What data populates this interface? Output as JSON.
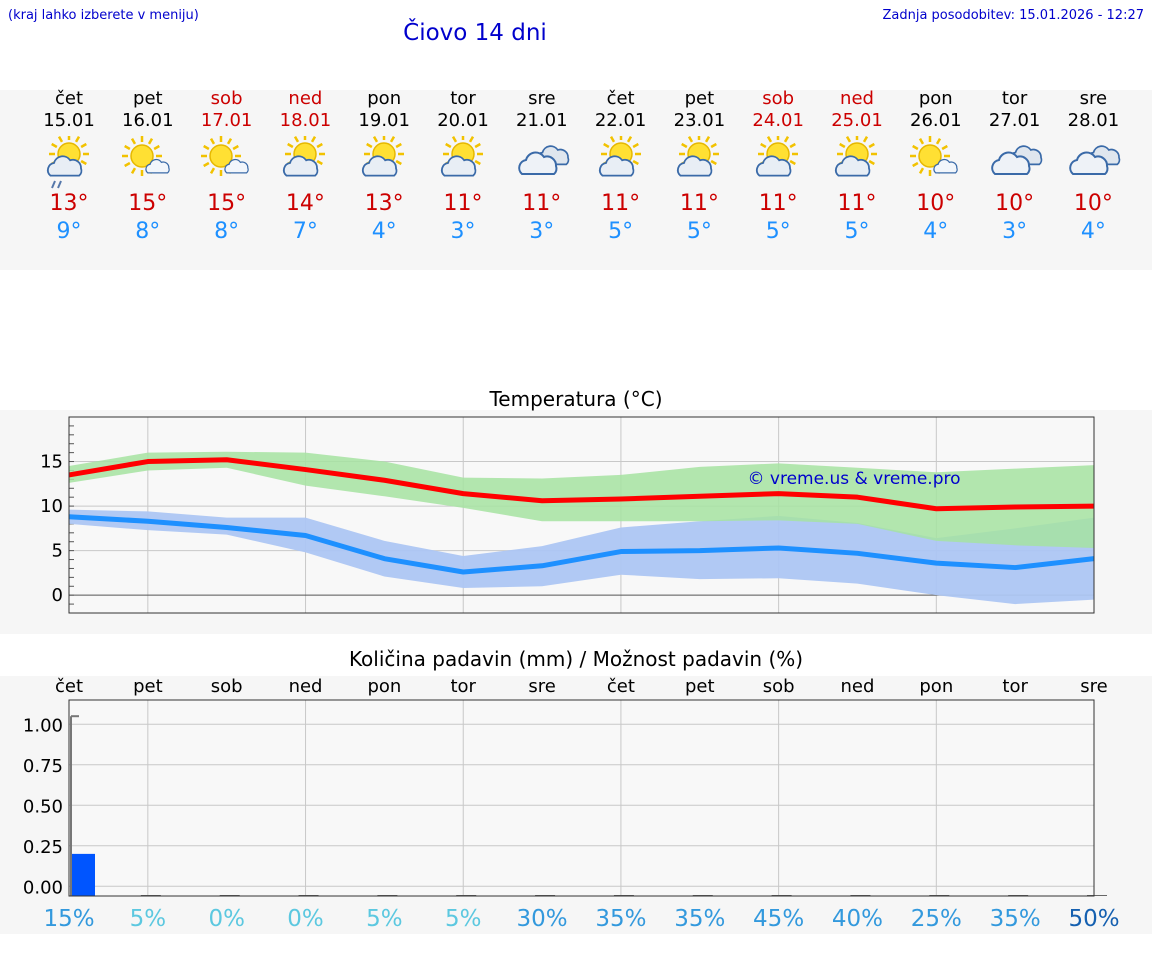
{
  "header": {
    "hint": "(kraj lahko izberete v meniju)",
    "title": "Čiovo 14 dni",
    "updated": "Zadnja posodobitev: 15.01.2026 - 12:27"
  },
  "forecast": [
    {
      "day": "čet",
      "date": "15.01",
      "weekend": false,
      "icon": "partly-cloudy-drizzle-icon",
      "tmax": "13°",
      "tmin": "9°"
    },
    {
      "day": "pet",
      "date": "16.01",
      "weekend": false,
      "icon": "sun-small-cloud-icon",
      "tmax": "15°",
      "tmin": "8°"
    },
    {
      "day": "sob",
      "date": "17.01",
      "weekend": true,
      "icon": "sun-small-cloud-icon",
      "tmax": "15°",
      "tmin": "8°"
    },
    {
      "day": "ned",
      "date": "18.01",
      "weekend": true,
      "icon": "partly-cloudy-icon",
      "tmax": "14°",
      "tmin": "7°"
    },
    {
      "day": "pon",
      "date": "19.01",
      "weekend": false,
      "icon": "partly-cloudy-icon",
      "tmax": "13°",
      "tmin": "4°"
    },
    {
      "day": "tor",
      "date": "20.01",
      "weekend": false,
      "icon": "partly-cloudy-icon",
      "tmax": "11°",
      "tmin": "3°"
    },
    {
      "day": "sre",
      "date": "21.01",
      "weekend": false,
      "icon": "cloudy-icon",
      "tmax": "11°",
      "tmin": "3°"
    },
    {
      "day": "čet",
      "date": "22.01",
      "weekend": false,
      "icon": "partly-cloudy-icon",
      "tmax": "11°",
      "tmin": "5°"
    },
    {
      "day": "pet",
      "date": "23.01",
      "weekend": false,
      "icon": "partly-cloudy-icon",
      "tmax": "11°",
      "tmin": "5°"
    },
    {
      "day": "sob",
      "date": "24.01",
      "weekend": true,
      "icon": "partly-cloudy-icon",
      "tmax": "11°",
      "tmin": "5°"
    },
    {
      "day": "ned",
      "date": "25.01",
      "weekend": true,
      "icon": "partly-cloudy-icon",
      "tmax": "11°",
      "tmin": "5°"
    },
    {
      "day": "pon",
      "date": "26.01",
      "weekend": false,
      "icon": "sun-small-cloud-icon",
      "tmax": "10°",
      "tmin": "4°"
    },
    {
      "day": "tor",
      "date": "27.01",
      "weekend": false,
      "icon": "cloudy-icon",
      "tmax": "10°",
      "tmin": "3°"
    },
    {
      "day": "sre",
      "date": "28.01",
      "weekend": false,
      "icon": "cloudy-icon",
      "tmax": "10°",
      "tmin": "4°"
    }
  ],
  "colors": {
    "max": "#ff0000",
    "min": "#1e90ff",
    "max_band": "#a6e3a1",
    "min_band": "#adc6f3",
    "overlap": "#7bc9a5",
    "bar": "#0055ff",
    "weekend": "#cc0000"
  },
  "chart_data": [
    {
      "type": "line",
      "title": "Temperatura (°C)",
      "watermark": "© vreme.us & vreme.pro",
      "x": [
        "15.01",
        "16.01",
        "17.01",
        "18.01",
        "19.01",
        "20.01",
        "21.01",
        "22.01",
        "23.01",
        "24.01",
        "25.01",
        "26.01",
        "27.01",
        "28.01"
      ],
      "ylim": [
        -2,
        20
      ],
      "yticks": [
        0,
        5,
        10,
        15
      ],
      "series": [
        {
          "name": "max",
          "values": [
            13.5,
            15.0,
            15.2,
            14.1,
            12.9,
            11.4,
            10.6,
            10.8,
            11.1,
            11.4,
            11.0,
            9.7,
            9.9,
            10.0
          ]
        },
        {
          "name": "min",
          "values": [
            8.8,
            8.3,
            7.6,
            6.7,
            4.1,
            2.6,
            3.3,
            4.9,
            5.0,
            5.3,
            4.7,
            3.6,
            3.1,
            4.1
          ]
        }
      ],
      "bands": [
        {
          "name": "max_range",
          "low": [
            12.6,
            14.0,
            14.3,
            12.3,
            11.1,
            9.8,
            8.3,
            8.3,
            8.3,
            8.4,
            8.0,
            6.1,
            5.6,
            5.3
          ],
          "high": [
            14.5,
            16.0,
            16.1,
            16.0,
            15.0,
            13.2,
            13.1,
            13.5,
            14.4,
            14.8,
            14.3,
            13.8,
            14.2,
            14.6
          ]
        },
        {
          "name": "min_range",
          "low": [
            8.0,
            7.3,
            6.8,
            4.8,
            2.1,
            0.8,
            1.0,
            2.3,
            1.8,
            1.9,
            1.3,
            0.0,
            -1.0,
            -0.5
          ],
          "high": [
            9.6,
            9.4,
            8.7,
            8.7,
            6.1,
            4.4,
            5.5,
            7.6,
            8.3,
            8.9,
            8.1,
            6.4,
            7.5,
            8.7
          ]
        }
      ]
    },
    {
      "type": "bar",
      "title": "Količina padavin (mm) / Možnost padavin (%)",
      "categories": [
        "čet",
        "pet",
        "sob",
        "ned",
        "pon",
        "tor",
        "sre",
        "čet",
        "pet",
        "sob",
        "ned",
        "pon",
        "tor",
        "sre"
      ],
      "values": [
        0.2,
        0,
        0,
        0,
        0,
        0,
        0,
        0,
        0,
        0,
        0,
        0,
        0,
        0
      ],
      "range_max": [
        1.05,
        0,
        0,
        0,
        0,
        0,
        0,
        0,
        0,
        0,
        0,
        0,
        0,
        0
      ],
      "ylim": [
        -0.06,
        1.15
      ],
      "yticks": [
        "0.00",
        "0.25",
        "0.50",
        "0.75",
        "1.00"
      ],
      "ytick_values": [
        0,
        0.25,
        0.5,
        0.75,
        1.0
      ],
      "probability": [
        "15%",
        "5%",
        "0%",
        "0%",
        "5%",
        "5%",
        "30%",
        "35%",
        "35%",
        "45%",
        "40%",
        "25%",
        "35%",
        "50%"
      ],
      "probability_values": [
        15,
        5,
        0,
        0,
        5,
        5,
        30,
        35,
        35,
        45,
        40,
        25,
        35,
        50
      ]
    }
  ]
}
